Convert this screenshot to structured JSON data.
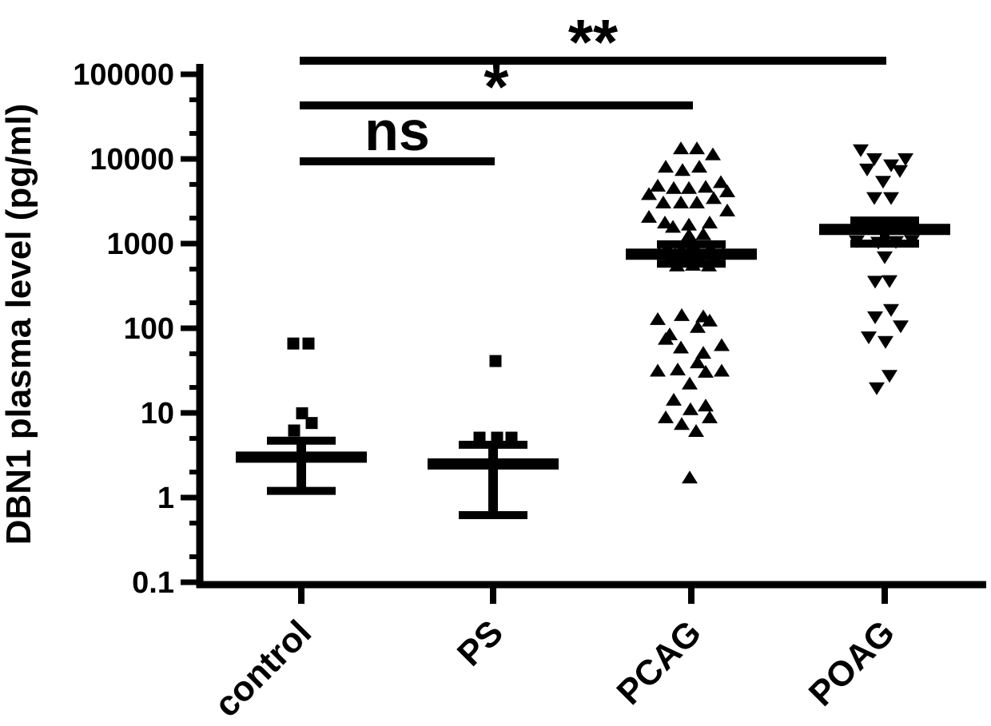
{
  "figure": {
    "background_color": "#ffffff",
    "foreground_color": "#000000"
  },
  "chart_data": {
    "type": "scatter",
    "title": "",
    "xlabel": "",
    "ylabel": "DBN1 plasma level (pg/ml)",
    "yscale": "log",
    "ylim": [
      0.1,
      100000
    ],
    "grid": false,
    "legend": "none",
    "ytick_values": [
      100000,
      10000,
      1000,
      100,
      10,
      1,
      0.1
    ],
    "ytick_labels": [
      "100000",
      "10000",
      "1000",
      "100",
      "10",
      "1",
      "0.1"
    ],
    "minor_tick_multiples": [
      2,
      5
    ],
    "point_format": [
      "value_pg_ml",
      "x_jitter_offset_px"
    ],
    "groups": [
      {
        "label": "control",
        "marker": "square",
        "mean": 3.0,
        "sem_upper": 4.7,
        "sem_lower": 1.2,
        "points": [
          [
            66,
            -10
          ],
          [
            66,
            9
          ],
          [
            9.9,
            1
          ],
          [
            7.6,
            13
          ],
          [
            6.2,
            -9
          ]
        ]
      },
      {
        "label": "PS",
        "marker": "square",
        "mean": 2.5,
        "sem_upper": 4.2,
        "sem_lower": 0.62,
        "points": [
          [
            41,
            3
          ],
          [
            5.1,
            -17
          ],
          [
            5.1,
            5
          ],
          [
            5.1,
            23
          ]
        ]
      },
      {
        "label": "PCAG",
        "marker": "triangle-up",
        "mean": 750,
        "sem_upper": 980,
        "sem_lower": 580,
        "points": [
          [
            13500,
            -13
          ],
          [
            13500,
            7
          ],
          [
            11500,
            27
          ],
          [
            8200,
            -32
          ],
          [
            7500,
            -11
          ],
          [
            8200,
            10
          ],
          [
            4900,
            -42
          ],
          [
            4600,
            -22
          ],
          [
            4600,
            -3
          ],
          [
            4750,
            18
          ],
          [
            5400,
            37
          ],
          [
            3900,
            -53
          ],
          [
            3100,
            -35
          ],
          [
            3100,
            -13
          ],
          [
            3100,
            7
          ],
          [
            3500,
            28
          ],
          [
            4200,
            45
          ],
          [
            2100,
            -53
          ],
          [
            2500,
            45
          ],
          [
            1800,
            -33
          ],
          [
            1600,
            -23
          ],
          [
            1700,
            -3
          ],
          [
            1800,
            23
          ],
          [
            1280,
            -3
          ],
          [
            1310,
            15
          ],
          [
            900,
            -30
          ],
          [
            880,
            -12
          ],
          [
            860,
            6
          ],
          [
            900,
            24
          ],
          [
            780,
            -40
          ],
          [
            760,
            -20
          ],
          [
            750,
            0
          ],
          [
            770,
            20
          ],
          [
            780,
            40
          ],
          [
            640,
            -28
          ],
          [
            620,
            -8
          ],
          [
            630,
            12
          ],
          [
            650,
            30
          ],
          [
            560,
            -18
          ],
          [
            570,
            2
          ],
          [
            560,
            22
          ],
          [
            130,
            -42
          ],
          [
            145,
            -12
          ],
          [
            140,
            15
          ],
          [
            125,
            23
          ],
          [
            105,
            8
          ],
          [
            86,
            -27
          ],
          [
            76,
            -32
          ],
          [
            60,
            -13
          ],
          [
            52,
            15
          ],
          [
            64,
            38
          ],
          [
            32,
            -42
          ],
          [
            33,
            -17
          ],
          [
            40,
            8
          ],
          [
            31,
            18
          ],
          [
            32,
            38
          ],
          [
            22.5,
            -2
          ],
          [
            14.5,
            -22
          ],
          [
            11.2,
            -1
          ],
          [
            12.4,
            18
          ],
          [
            9,
            -32
          ],
          [
            9,
            23
          ],
          [
            7.5,
            -12
          ],
          [
            6.2,
            6
          ],
          [
            1.75,
            -2
          ]
        ]
      },
      {
        "label": "POAG",
        "marker": "triangle-down",
        "mean": 1470,
        "sem_upper": 1870,
        "sem_lower": 1000,
        "points": [
          [
            12500,
            -30
          ],
          [
            9800,
            -13
          ],
          [
            9800,
            26
          ],
          [
            8300,
            8
          ],
          [
            7400,
            -22
          ],
          [
            7100,
            19
          ],
          [
            5300,
            -2
          ],
          [
            3400,
            -13
          ],
          [
            3400,
            8
          ],
          [
            1050,
            -35
          ],
          [
            1010,
            -8
          ],
          [
            1030,
            14
          ],
          [
            1060,
            34
          ],
          [
            680,
            0
          ],
          [
            350,
            -12
          ],
          [
            355,
            6
          ],
          [
            162,
            8
          ],
          [
            133,
            -12
          ],
          [
            104,
            20
          ],
          [
            77,
            -20
          ],
          [
            68,
            1
          ],
          [
            27,
            6
          ],
          [
            19.3,
            -10
          ]
        ]
      }
    ],
    "comparisons": [
      {
        "label": "ns",
        "from": "control",
        "to": "PS"
      },
      {
        "label": "*",
        "from": "control",
        "to": "PCAG"
      },
      {
        "label": "**",
        "from": "control",
        "to": "POAG"
      }
    ]
  }
}
